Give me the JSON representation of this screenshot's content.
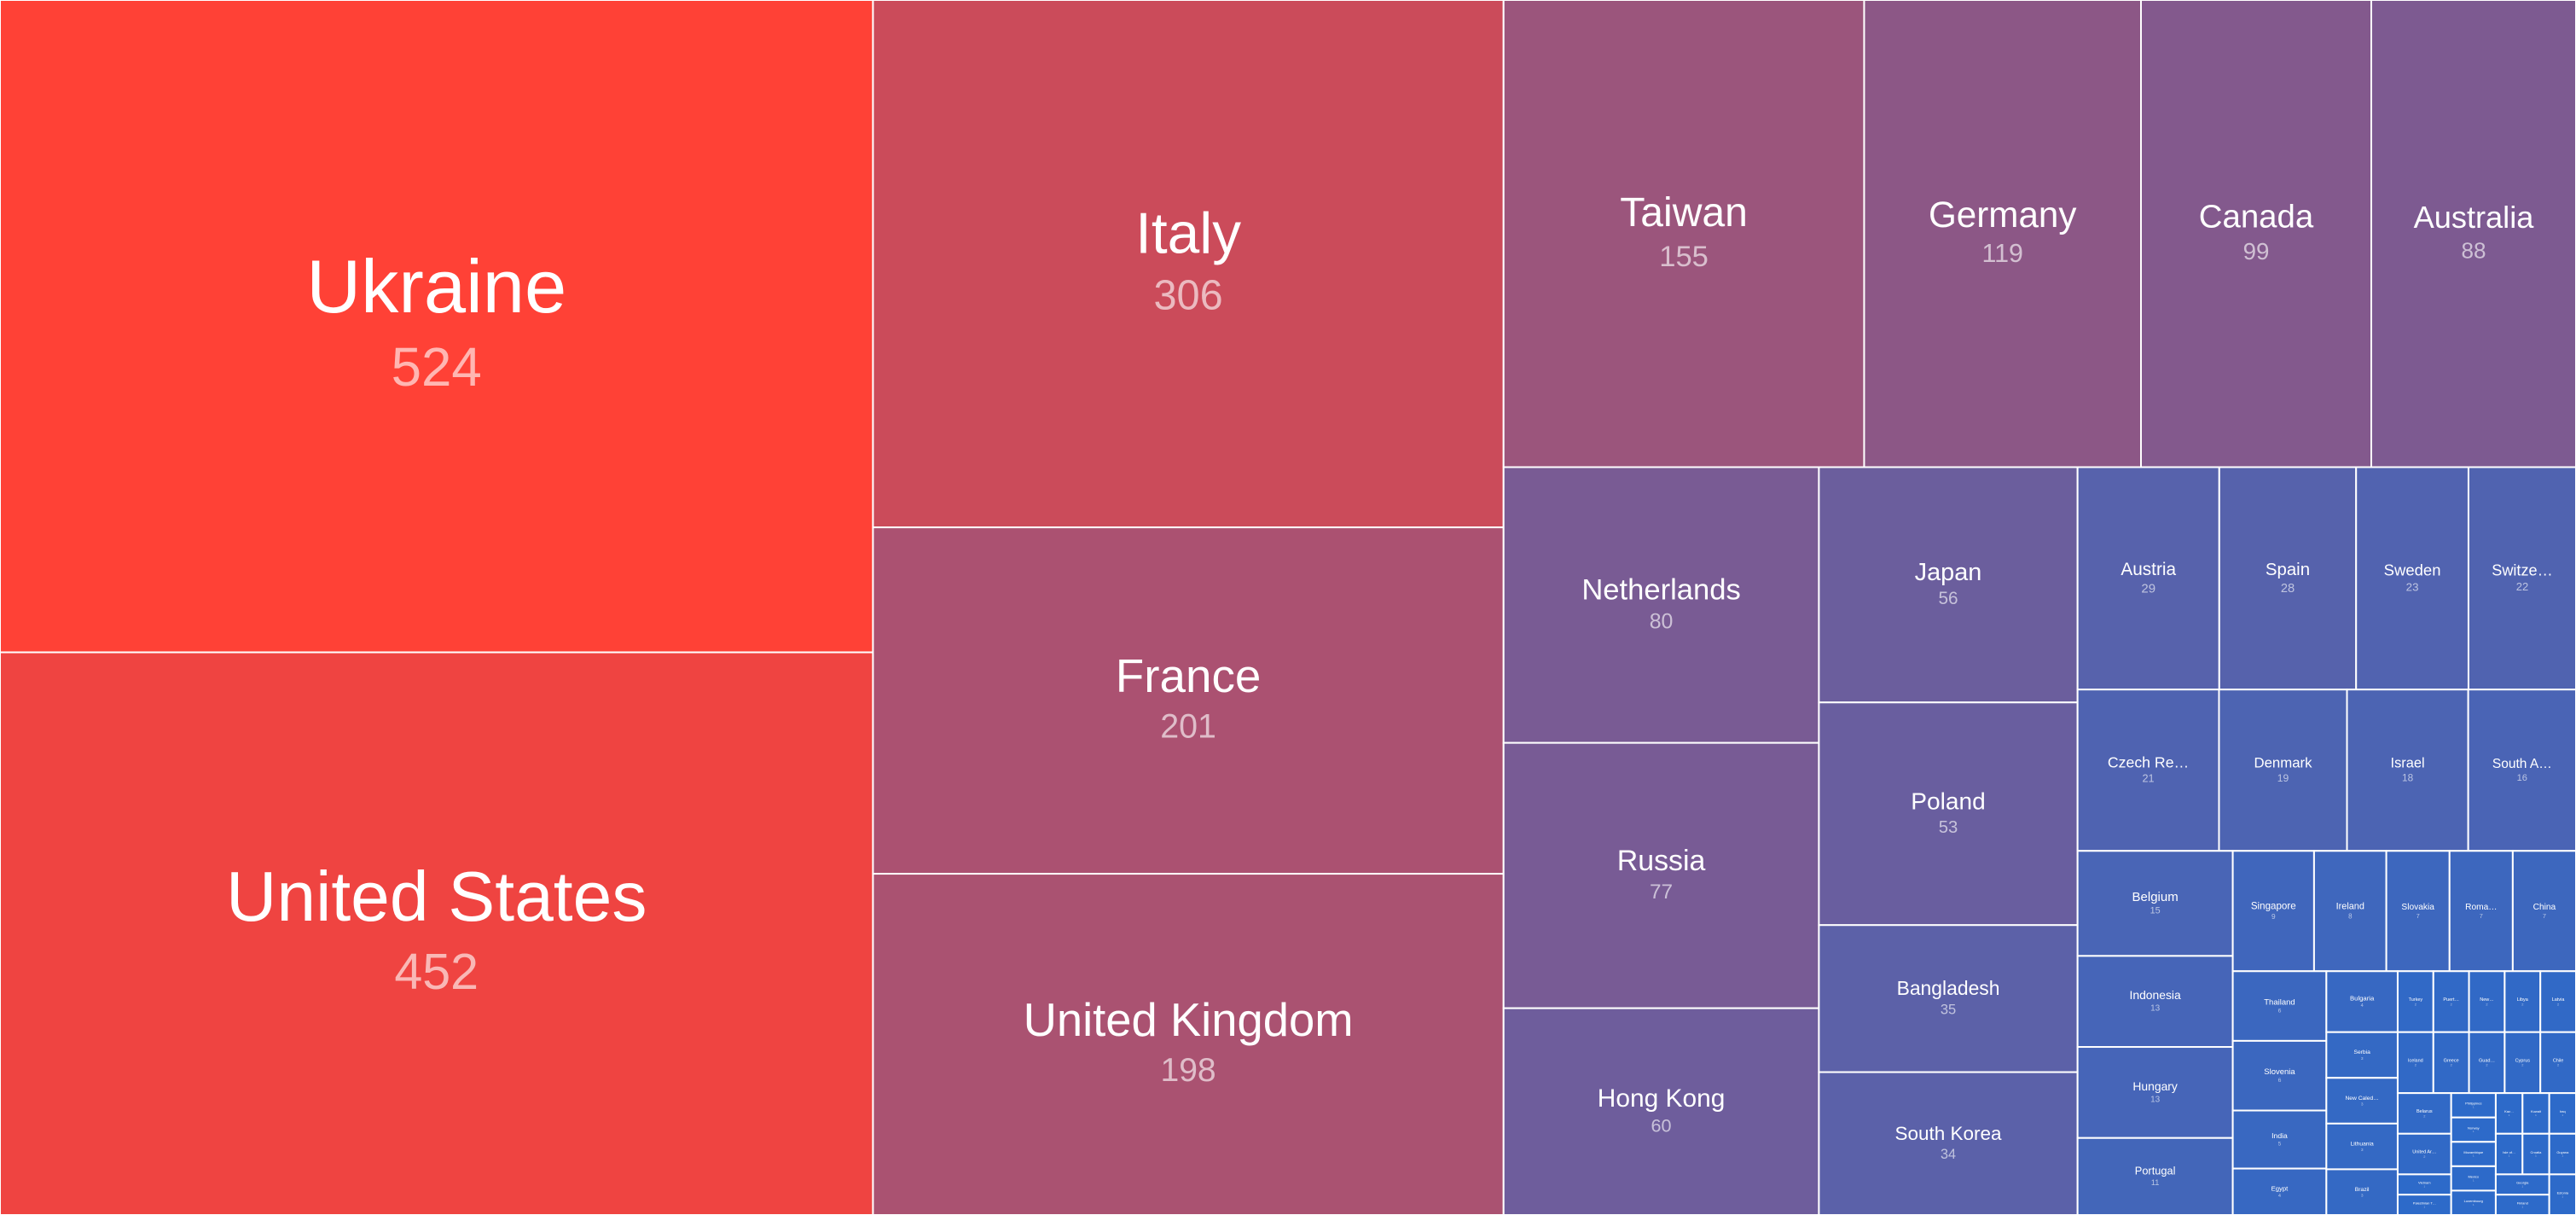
{
  "chart_data": {
    "type": "treemap",
    "categories": [
      "Ukraine",
      "United States",
      "Italy",
      "France",
      "United Kingdom",
      "Taiwan",
      "Germany",
      "Canada",
      "Australia",
      "Netherlands",
      "Russia",
      "Hong Kong",
      "Japan",
      "Poland",
      "Bangladesh",
      "South Korea",
      "Austria",
      "Spain",
      "Sweden",
      "Switze…",
      "Czech Re…",
      "Denmark",
      "Israel",
      "South A…",
      "Belgium",
      "Indonesia",
      "Hungary",
      "Portugal",
      "Singapore",
      "Ireland",
      "Slovakia",
      "Roma…",
      "China",
      "Thailand",
      "Slovenia",
      "India",
      "Egypt",
      "Bulgaria",
      "Serbia",
      "New Caled…",
      "Lithuania",
      "Brazil",
      "Turkey",
      "Puert…",
      "New…",
      "Libya",
      "Latvia",
      "Iceland",
      "Greece",
      "Guad…",
      "Cyprus",
      "Chile",
      "Belarus",
      "United Ar…",
      "Vietnam",
      "Palestinian T…",
      "Philippines",
      "Norway",
      "Mozambique",
      "Mexico",
      "Luxembourg",
      "Kaz…",
      "Kuwait",
      "Iraq",
      "Isle of…",
      "Croatia",
      "Guyana",
      "Georgia",
      "Finland",
      "Estonia"
    ],
    "values": [
      524,
      452,
      306,
      201,
      198,
      155,
      119,
      99,
      88,
      80,
      77,
      60,
      56,
      53,
      35,
      34,
      29,
      28,
      23,
      22,
      21,
      19,
      18,
      16,
      15,
      13,
      13,
      11,
      9,
      8,
      7,
      7,
      7,
      6,
      6,
      5,
      4,
      4,
      3,
      3,
      3,
      3,
      2,
      2,
      2,
      2,
      2,
      2,
      2,
      2,
      2,
      2,
      2,
      2,
      1,
      1,
      1,
      1,
      1,
      1,
      1,
      1,
      1,
      1,
      1,
      1,
      1,
      1,
      1,
      1
    ],
    "color_range": [
      "#2d6ac9",
      "#ff4136"
    ]
  }
}
